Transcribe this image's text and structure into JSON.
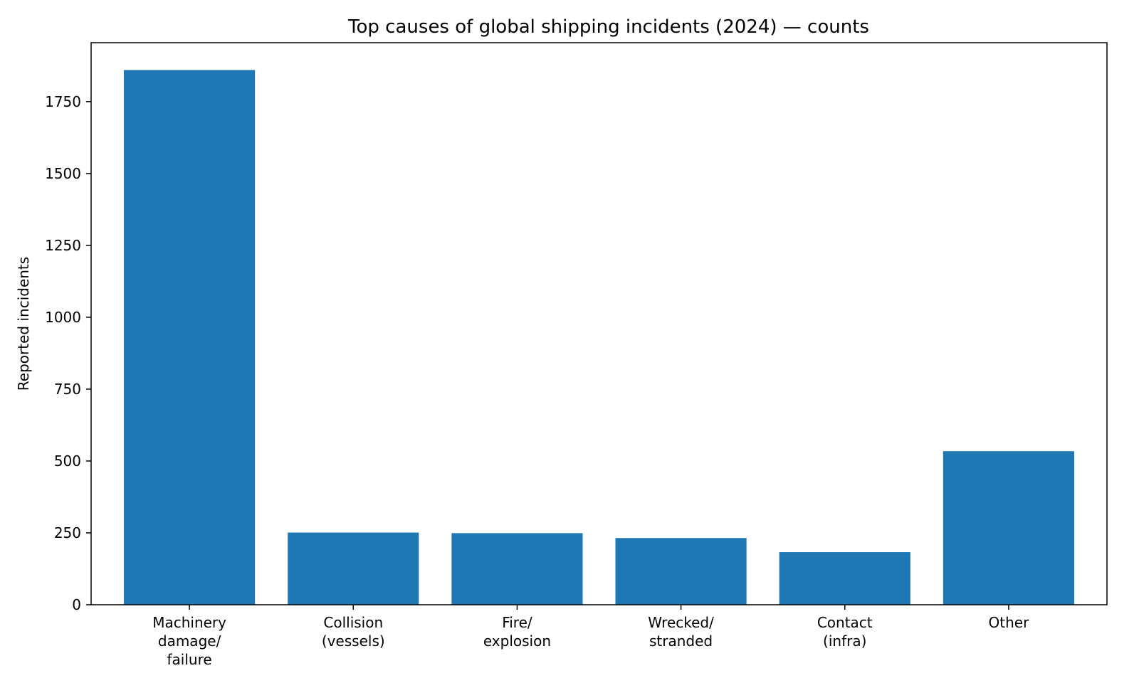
{
  "chart_data": {
    "type": "bar",
    "title": "Top causes of global shipping incidents (2024) — counts",
    "xlabel": "",
    "ylabel": "Reported incidents",
    "categories": [
      [
        "Machinery",
        "damage/",
        "failure"
      ],
      [
        "Collision",
        "(vessels)"
      ],
      [
        "Fire/",
        "explosion"
      ],
      [
        "Wrecked/",
        "stranded"
      ],
      [
        "Contact",
        "(infra)"
      ],
      [
        "Other"
      ]
    ],
    "values": [
      1860,
      251,
      249,
      232,
      183,
      534
    ],
    "ylim": [
      0,
      1955
    ],
    "yticks": [
      0,
      250,
      500,
      750,
      1000,
      1250,
      1500,
      1750
    ],
    "grid": false,
    "bar_color": "#1f77b4"
  }
}
